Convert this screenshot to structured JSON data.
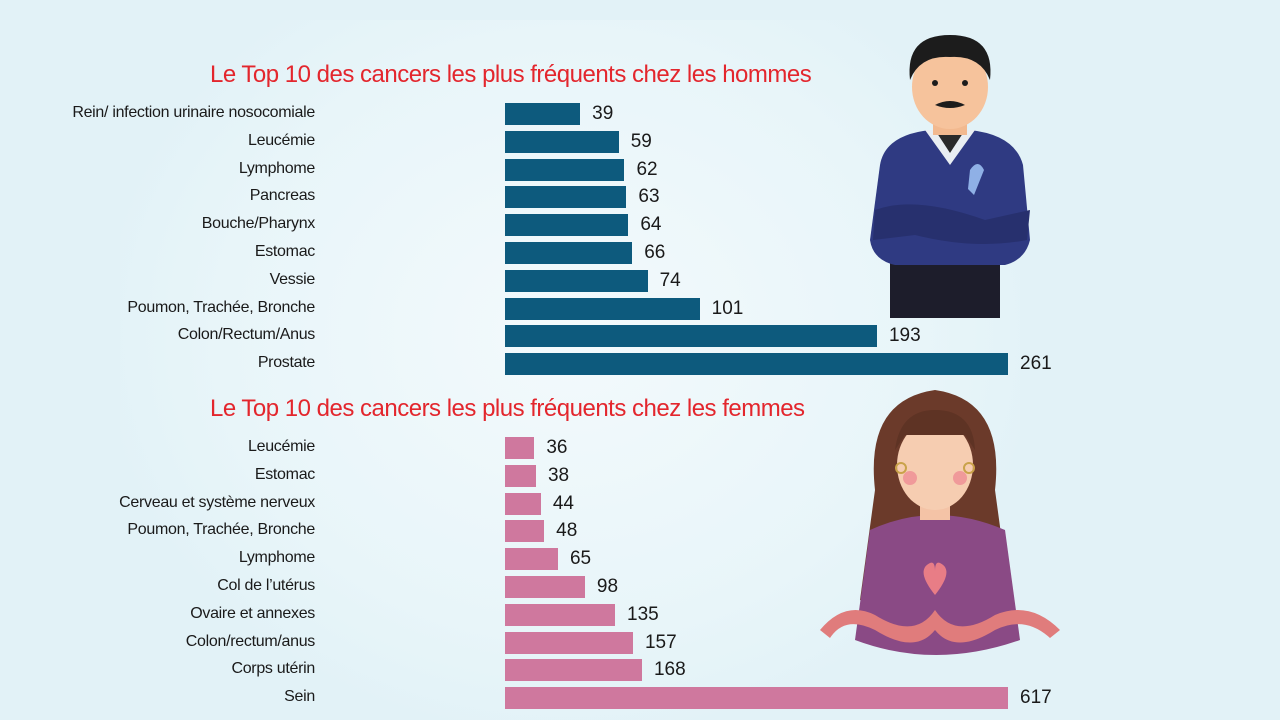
{
  "chart_data": [
    {
      "type": "bar",
      "orientation": "horizontal",
      "title": "Le Top 10 des cancers les plus fréquents chez les hommes",
      "color": "#0d5a7d",
      "categories": [
        "Rein/ infection urinaire nosocomiale",
        "Leucémie",
        "Lymphome",
        "Pancreas",
        "Bouche/Pharynx",
        "Estomac",
        "Vessie",
        "Poumon, Trachée, Bronche",
        "Colon/Rectum/Anus",
        "Prostate"
      ],
      "values": [
        39,
        59,
        62,
        63,
        64,
        66,
        74,
        101,
        193,
        261
      ],
      "data_labels": [
        "39",
        "59",
        "62",
        "63",
        "64",
        "66",
        "74",
        "101",
        "193",
        "261"
      ]
    },
    {
      "type": "bar",
      "orientation": "horizontal",
      "title": "Le Top 10 des cancers les plus fréquents chez les femmes",
      "color": "#cf789e",
      "categories": [
        "Leucémie",
        "Estomac",
        "Cerveau et système nerveux",
        "Poumon, Trachée, Bronche",
        "Lymphome",
        "Col de l’utérus",
        "Ovaire et annexes",
        "Colon/rectum/anus",
        "Corps utérin",
        "Sein"
      ],
      "values": [
        36,
        38,
        44,
        48,
        65,
        98,
        135,
        157,
        168,
        617
      ],
      "data_labels": [
        "36",
        "38",
        "44",
        "48",
        "65",
        "98",
        "135",
        "157",
        "168",
        "617"
      ]
    }
  ],
  "illustrations": {
    "men": "man-with-blue-ribbon",
    "women": "woman-with-pink-ribbon-heart"
  }
}
